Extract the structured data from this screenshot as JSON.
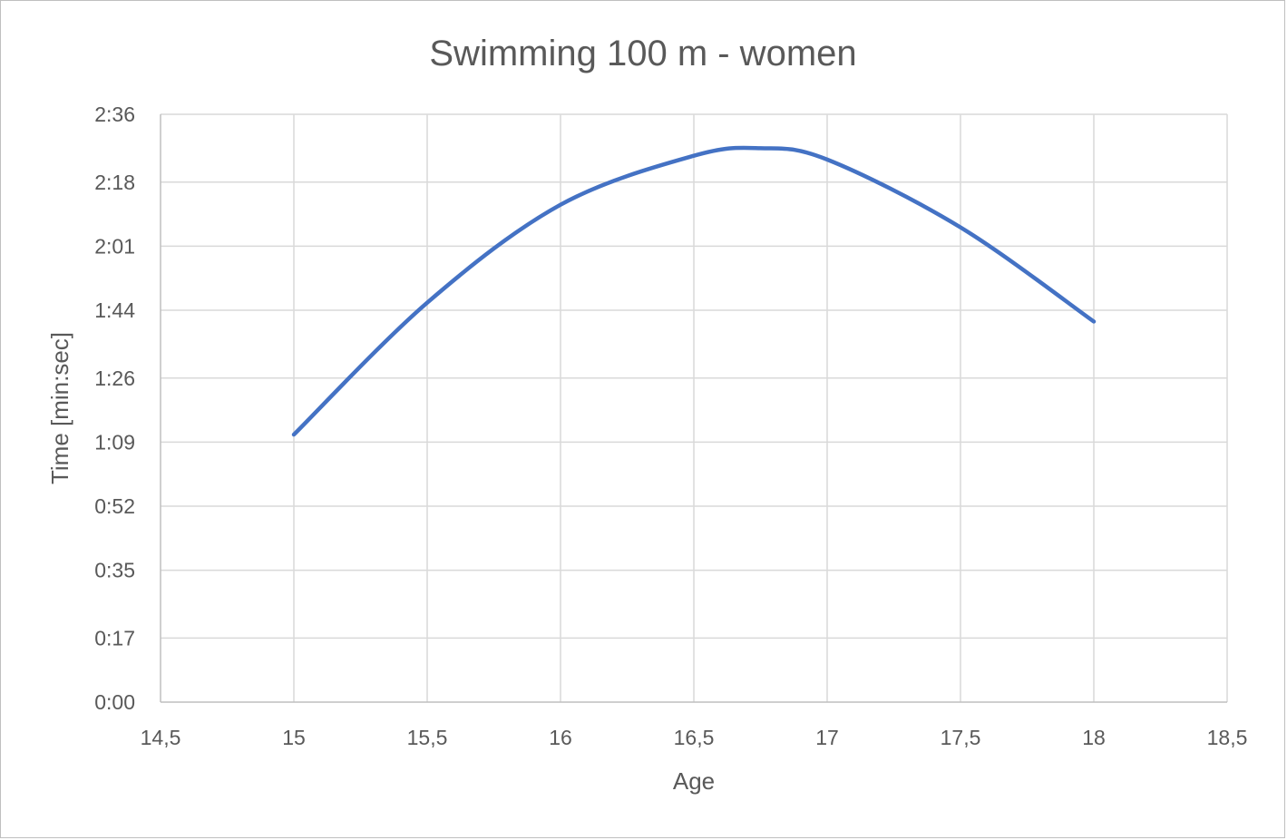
{
  "chart_data": {
    "type": "line",
    "title": "Swimming 100 m - women",
    "xlabel": "Age",
    "ylabel": "Time [min:sec]",
    "xlim": [
      14.5,
      18.5
    ],
    "ylim_seconds": [
      0,
      156
    ],
    "x_ticks": [
      14.5,
      15,
      15.5,
      16,
      16.5,
      17,
      17.5,
      18,
      18.5
    ],
    "x_tick_labels": [
      "14,5",
      "15",
      "15,5",
      "16",
      "16,5",
      "17",
      "17,5",
      "18",
      "18,5"
    ],
    "y_ticks_seconds": [
      0,
      17,
      35,
      52,
      69,
      86,
      104,
      121,
      138,
      156
    ],
    "y_tick_labels": [
      "0:00",
      "0:17",
      "0:35",
      "0:52",
      "1:09",
      "1:26",
      "1:44",
      "2:01",
      "2:18",
      "2:36"
    ],
    "grid": true,
    "legend": "none",
    "series": [
      {
        "name": "Time",
        "smooth": true,
        "color": "#4472c4",
        "x": [
          15,
          15.5,
          16,
          16.5,
          16.75,
          17,
          17.5,
          18
        ],
        "y_seconds": [
          71,
          106,
          132,
          145,
          147,
          144,
          126,
          101
        ]
      }
    ]
  }
}
